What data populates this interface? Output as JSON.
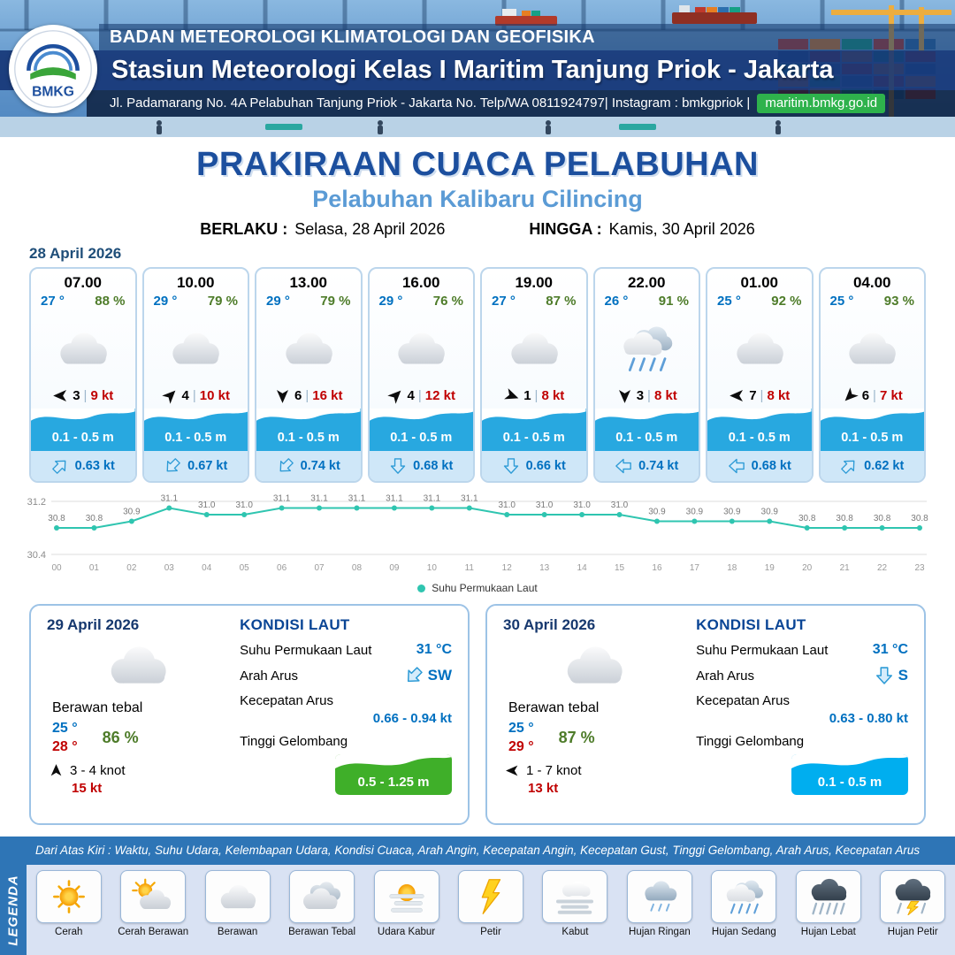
{
  "header": {
    "org": "BADAN METEOROLOGI KLIMATOLOGI DAN GEOFISIKA",
    "station": "Stasiun Meteorologi Kelas I Maritim Tanjung Priok - Jakarta",
    "address": "Jl. Padamarang No. 4A Pelabuhan Tanjung Priok - Jakarta No. Telp/WA 0811924797| Instagram : bmkgpriok |",
    "site": "maritim.bmkg.go.id",
    "logo_text": "BMKG"
  },
  "title": {
    "main": "PRAKIRAAN CUACA PELABUHAN",
    "subtitle": "Pelabuhan Kalibaru Cilincing",
    "valid_from_label": "BERLAKU :",
    "valid_from": "Selasa, 28 April 2026",
    "valid_to_label": "HINGGA :",
    "valid_to": "Kamis, 30 April 2026"
  },
  "hourly": {
    "date": "28 April 2026",
    "sep": "|",
    "cards": [
      {
        "time": "07.00",
        "temp": "27 °",
        "rh": "88 %",
        "icon": "cloud",
        "wind_dir_deg": 180,
        "wind_num": "3",
        "wind_speed": "9 kt",
        "wave": "0.1 - 0.5 m",
        "current_dir": "NE",
        "current": "0.63 kt"
      },
      {
        "time": "10.00",
        "temp": "29 °",
        "rh": "79 %",
        "icon": "cloud",
        "wind_dir_deg": -45,
        "wind_num": "4",
        "wind_speed": "10 kt",
        "wave": "0.1 - 0.5 m",
        "current_dir": "SW",
        "current": "0.67 kt"
      },
      {
        "time": "13.00",
        "temp": "29 °",
        "rh": "79 %",
        "icon": "cloud",
        "wind_dir_deg": 90,
        "wind_num": "6",
        "wind_speed": "16 kt",
        "wave": "0.1 - 0.5 m",
        "current_dir": "SW",
        "current": "0.74 kt"
      },
      {
        "time": "16.00",
        "temp": "29 °",
        "rh": "76 %",
        "icon": "cloud",
        "wind_dir_deg": -45,
        "wind_num": "4",
        "wind_speed": "12 kt",
        "wave": "0.1 - 0.5 m",
        "current_dir": "S",
        "current": "0.68 kt"
      },
      {
        "time": "19.00",
        "temp": "27 °",
        "rh": "87 %",
        "icon": "cloud",
        "wind_dir_deg": 20,
        "wind_num": "1",
        "wind_speed": "8 kt",
        "wave": "0.1 - 0.5 m",
        "current_dir": "S",
        "current": "0.66 kt"
      },
      {
        "time": "22.00",
        "temp": "26 °",
        "rh": "91 %",
        "icon": "rain-medium",
        "wind_dir_deg": 90,
        "wind_num": "3",
        "wind_speed": "8 kt",
        "wave": "0.1 - 0.5 m",
        "current_dir": "W",
        "current": "0.74 kt"
      },
      {
        "time": "01.00",
        "temp": "25 °",
        "rh": "92 %",
        "icon": "cloud",
        "wind_dir_deg": 180,
        "wind_num": "7",
        "wind_speed": "8 kt",
        "wave": "0.1 - 0.5 m",
        "current_dir": "W",
        "current": "0.68 kt"
      },
      {
        "time": "04.00",
        "temp": "25 °",
        "rh": "93 %",
        "icon": "cloud",
        "wind_dir_deg": 135,
        "wind_num": "6",
        "wind_speed": "7 kt",
        "wave": "0.1 - 0.5 m",
        "current_dir": "NE",
        "current": "0.62 kt"
      }
    ]
  },
  "chart_data": {
    "type": "line",
    "title": "",
    "series_name": "Suhu Permukaan Laut",
    "x": [
      "00",
      "01",
      "02",
      "03",
      "04",
      "05",
      "06",
      "07",
      "08",
      "09",
      "10",
      "11",
      "12",
      "13",
      "14",
      "15",
      "16",
      "17",
      "18",
      "19",
      "20",
      "21",
      "22",
      "23"
    ],
    "values": [
      30.8,
      30.8,
      30.9,
      31.1,
      31.0,
      31.0,
      31.1,
      31.1,
      31.1,
      31.1,
      31.1,
      31.1,
      31.0,
      31.0,
      31.0,
      31.0,
      30.9,
      30.9,
      30.9,
      30.9,
      30.8,
      30.8,
      30.8,
      30.8
    ],
    "ylim": [
      30.4,
      31.2
    ],
    "yticks": [
      30.4,
      31.2
    ],
    "grid": true,
    "legend_position": "bottom",
    "line_color": "#2fc5b0"
  },
  "days": [
    {
      "date": "29 April 2026",
      "icon": "cloud",
      "condition": "Berawan tebal",
      "temp_min": "25 °",
      "temp_max": "28 °",
      "humidity": "86 %",
      "wind_dir_deg": -90,
      "wind_range": "3  - 4 knot",
      "gust": "15 kt",
      "sea": {
        "title": "KONDISI LAUT",
        "sst_label": "Suhu Permukaan Laut",
        "sst": "31 °C",
        "dir_label": "Arah Arus",
        "current_dir": "SW",
        "dir": "SW",
        "speed_label": "Kecepatan Arus",
        "speed": "0.66  - 0.94 kt",
        "wave_label": "Tinggi Gelombang",
        "wave": "0.5 - 1.25 m",
        "wave_color": "#3faf29"
      }
    },
    {
      "date": "30 April 2026",
      "icon": "cloud",
      "condition": "Berawan tebal",
      "temp_min": "25 °",
      "temp_max": "29 °",
      "humidity": "87 %",
      "wind_dir_deg": 180,
      "wind_range": "1  - 7 knot",
      "gust": "13 kt",
      "sea": {
        "title": "KONDISI LAUT",
        "sst_label": "Suhu Permukaan Laut",
        "sst": "31 °C",
        "dir_label": "Arah Arus",
        "current_dir": "S",
        "dir": "S",
        "speed_label": "Kecepatan Arus",
        "speed": "0.63 - 0.80 kt",
        "wave_label": "Tinggi Gelombang",
        "wave": "0.1 - 0.5 m",
        "wave_color": "#00aeef"
      }
    }
  ],
  "legend": {
    "note": "Dari Atas Kiri : Waktu, Suhu Udara, Kelembapan Udara, Kondisi Cuaca, Arah Angin, Kecepatan Angin, Kecepatan Gust, Tinggi Gelombang, Arah Arus, Kecepatan Arus",
    "title": "LEGENDA",
    "items": [
      {
        "label": "Cerah",
        "icon": "sun"
      },
      {
        "label": "Cerah Berawan",
        "icon": "sun-cloud"
      },
      {
        "label": "Berawan",
        "icon": "cloud"
      },
      {
        "label": "Berawan Tebal",
        "icon": "cloud-thick"
      },
      {
        "label": "Udara Kabur",
        "icon": "haze"
      },
      {
        "label": "Petir",
        "icon": "lightning"
      },
      {
        "label": "Kabut",
        "icon": "fog"
      },
      {
        "label": "Hujan Ringan",
        "icon": "rain-light"
      },
      {
        "label": "Hujan Sedang",
        "icon": "rain-medium"
      },
      {
        "label": "Hujan Lebat",
        "icon": "rain-heavy"
      },
      {
        "label": "Hujan Petir",
        "icon": "storm"
      }
    ]
  },
  "colors": {
    "brand_blue": "#1c4f9e",
    "subtitle_blue": "#5b9bd5",
    "temp_blue": "#0070c0",
    "humidity_green": "#4e7c2a",
    "speed_red": "#c00000",
    "wave_band_blue": "#28a8e0",
    "legend_strip_blue": "#2e75b6"
  }
}
